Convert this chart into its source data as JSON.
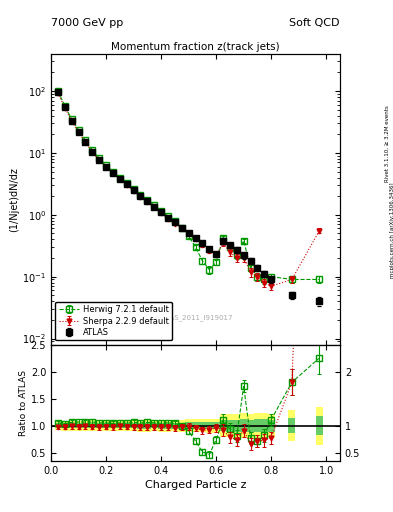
{
  "title_left": "7000 GeV pp",
  "title_right": "Soft QCD",
  "plot_title": "Momentum fraction z(track jets)",
  "ylabel_main": "(1/Njet)dN/dz",
  "ylabel_ratio": "Ratio to ATLAS",
  "xlabel": "Charged Particle z",
  "right_label_top": "Rivet 3.1.10, ≥ 3.2M events",
  "right_label_bottom": "mcplots.cern.ch [arXiv:1306.3436]",
  "watermark": "ATLAS_2011_I919017",
  "ylim_main": [
    0.008,
    400
  ],
  "ylim_ratio": [
    0.35,
    2.5
  ],
  "xlim": [
    0.0,
    1.05
  ],
  "atlas_x": [
    0.025,
    0.05,
    0.075,
    0.1,
    0.125,
    0.15,
    0.175,
    0.2,
    0.225,
    0.25,
    0.275,
    0.3,
    0.325,
    0.35,
    0.375,
    0.4,
    0.425,
    0.45,
    0.475,
    0.5,
    0.525,
    0.55,
    0.575,
    0.6,
    0.625,
    0.65,
    0.675,
    0.7,
    0.725,
    0.75,
    0.775,
    0.8,
    0.875,
    0.975
  ],
  "atlas_y": [
    95,
    55,
    33,
    22,
    15,
    10.5,
    7.8,
    6.0,
    4.8,
    3.8,
    3.1,
    2.5,
    2.0,
    1.65,
    1.35,
    1.1,
    0.9,
    0.75,
    0.62,
    0.5,
    0.42,
    0.35,
    0.28,
    0.23,
    0.38,
    0.32,
    0.27,
    0.22,
    0.18,
    0.14,
    0.11,
    0.09,
    0.05,
    0.04
  ],
  "atlas_yerr": [
    4,
    2.5,
    1.5,
    1.0,
    0.7,
    0.5,
    0.4,
    0.3,
    0.25,
    0.2,
    0.16,
    0.13,
    0.11,
    0.09,
    0.07,
    0.06,
    0.05,
    0.04,
    0.035,
    0.03,
    0.025,
    0.022,
    0.018,
    0.015,
    0.04,
    0.035,
    0.03,
    0.025,
    0.02,
    0.016,
    0.013,
    0.01,
    0.007,
    0.007
  ],
  "herwig_x": [
    0.025,
    0.05,
    0.075,
    0.1,
    0.125,
    0.15,
    0.175,
    0.2,
    0.225,
    0.25,
    0.275,
    0.3,
    0.325,
    0.35,
    0.375,
    0.4,
    0.425,
    0.45,
    0.475,
    0.5,
    0.525,
    0.55,
    0.575,
    0.6,
    0.625,
    0.65,
    0.675,
    0.7,
    0.725,
    0.75,
    0.775,
    0.8,
    0.875,
    0.975
  ],
  "herwig_y": [
    100,
    57,
    35,
    23.5,
    16,
    11.2,
    8.2,
    6.3,
    5.0,
    4.0,
    3.25,
    2.65,
    2.1,
    1.75,
    1.42,
    1.15,
    0.95,
    0.78,
    0.62,
    0.45,
    0.3,
    0.18,
    0.13,
    0.17,
    0.42,
    0.3,
    0.22,
    0.38,
    0.14,
    0.1,
    0.09,
    0.1,
    0.09,
    0.09
  ],
  "herwig_yerr": [
    4,
    2.5,
    1.5,
    1.0,
    0.7,
    0.5,
    0.4,
    0.3,
    0.25,
    0.2,
    0.16,
    0.13,
    0.11,
    0.09,
    0.07,
    0.06,
    0.05,
    0.04,
    0.035,
    0.03,
    0.025,
    0.022,
    0.018,
    0.015,
    0.04,
    0.035,
    0.03,
    0.025,
    0.02,
    0.016,
    0.013,
    0.01,
    0.012,
    0.012
  ],
  "sherpa_x": [
    0.025,
    0.05,
    0.075,
    0.1,
    0.125,
    0.15,
    0.175,
    0.2,
    0.225,
    0.25,
    0.275,
    0.3,
    0.325,
    0.35,
    0.375,
    0.4,
    0.425,
    0.45,
    0.475,
    0.5,
    0.525,
    0.55,
    0.575,
    0.6,
    0.625,
    0.65,
    0.675,
    0.7,
    0.725,
    0.75,
    0.775,
    0.8,
    0.875,
    0.975
  ],
  "sherpa_y": [
    93,
    54,
    32.5,
    21.5,
    14.8,
    10.3,
    7.6,
    5.9,
    4.7,
    3.75,
    3.05,
    2.45,
    1.95,
    1.6,
    1.32,
    1.07,
    0.87,
    0.72,
    0.6,
    0.49,
    0.4,
    0.32,
    0.26,
    0.22,
    0.35,
    0.25,
    0.2,
    0.2,
    0.12,
    0.1,
    0.08,
    0.07,
    0.09,
    0.55
  ],
  "sherpa_yerr": [
    4,
    2.5,
    1.5,
    1.0,
    0.7,
    0.5,
    0.4,
    0.3,
    0.25,
    0.2,
    0.16,
    0.13,
    0.11,
    0.09,
    0.07,
    0.06,
    0.05,
    0.04,
    0.035,
    0.03,
    0.025,
    0.022,
    0.018,
    0.015,
    0.04,
    0.035,
    0.03,
    0.025,
    0.02,
    0.016,
    0.013,
    0.01,
    0.012,
    0.05
  ],
  "atlas_color": "#000000",
  "herwig_color": "#009900",
  "sherpa_color": "#cc0000",
  "bg_color": "#ffffff",
  "green_band_color": "#66cc66",
  "yellow_band_color": "#ffff66",
  "legend_labels": [
    "ATLAS",
    "Herwig 7.2.1 default",
    "Sherpa 2.2.9 default"
  ]
}
